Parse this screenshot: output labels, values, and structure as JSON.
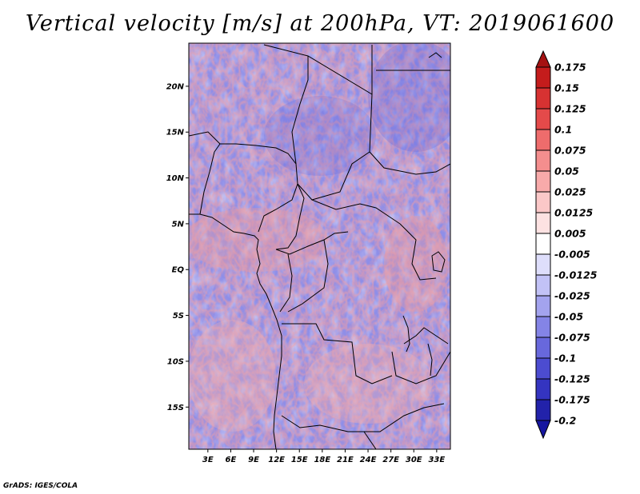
{
  "title": "Vertical velocity [m/s] at 200hPa, VT: 2019061600",
  "footer": "GrADS: IGES/COLA",
  "map": {
    "lat_labels": [
      "20N",
      "15N",
      "10N",
      "5N",
      "EQ",
      "5S",
      "10S",
      "15S"
    ],
    "lat_values": [
      20,
      15,
      10,
      5,
      0,
      -5,
      -10,
      -15
    ],
    "lon_labels": [
      "3E",
      "6E",
      "9E",
      "12E",
      "15E",
      "18E",
      "21E",
      "24E",
      "27E",
      "30E",
      "33E"
    ],
    "lon_values": [
      3,
      6,
      9,
      12,
      15,
      18,
      21,
      24,
      27,
      30,
      33
    ],
    "lon_range": [
      0.5,
      34.8
    ],
    "lat_range": [
      -19.6,
      24.7
    ]
  },
  "colorbar": {
    "labels": [
      "0.175",
      "0.15",
      "0.125",
      "0.1",
      "0.075",
      "0.05",
      "0.025",
      "0.0125",
      "0.005",
      "-0.005",
      "-0.0125",
      "-0.025",
      "-0.05",
      "-0.075",
      "-0.1",
      "-0.125",
      "-0.175",
      "-0.2"
    ],
    "colors": [
      "#a51212",
      "#c41c1c",
      "#d73232",
      "#e44a4a",
      "#ee6c6c",
      "#f48e8e",
      "#f8aaaa",
      "#fbc8c8",
      "#fde2e2",
      "#ffffff",
      "#dedefb",
      "#c2c2f6",
      "#a3a3ee",
      "#8484e6",
      "#6868dc",
      "#4c4cd0",
      "#3434c0",
      "#2222aa",
      "#1616a0"
    ]
  }
}
